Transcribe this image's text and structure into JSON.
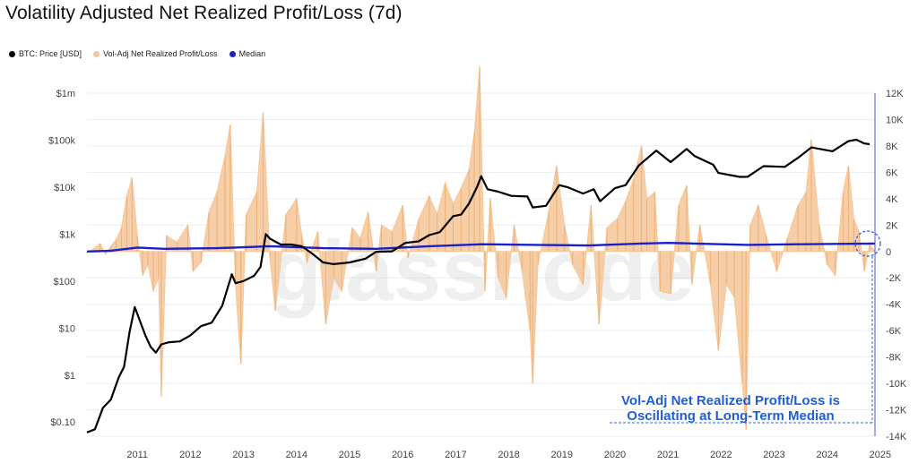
{
  "page": {
    "title": "Volatility Adjusted Net Realized Profit/Loss (7d)",
    "watermark": "glassnode"
  },
  "chart_data": {
    "type": "line",
    "title": "Volatility Adjusted Net Realized Profit/Loss (7d)",
    "legend_placement": "top-left",
    "grid": true,
    "legend": [
      {
        "name": "BTC: Price [USD]",
        "color": "#000000"
      },
      {
        "name": "Vol-Adj Net Realized Profit/Loss",
        "color": "#f5c79a"
      },
      {
        "name": "Median",
        "color": "#1a20c8"
      }
    ],
    "x_ticks": [
      "2011",
      "2012",
      "2013",
      "2014",
      "2015",
      "2016",
      "2017",
      "2018",
      "2019",
      "2020",
      "2021",
      "2022",
      "2023",
      "2024",
      "2025"
    ],
    "xlim": [
      2010.55,
      2025.4
    ],
    "y_left": {
      "scale": "log",
      "ticks": [
        "$0.10",
        "$1",
        "$10",
        "$100",
        "$1k",
        "$10k",
        "$100k",
        "$1m"
      ],
      "tick_values": [
        0.1,
        1,
        10,
        100,
        1000,
        10000,
        100000,
        1000000
      ],
      "range": [
        0.05,
        1000000
      ]
    },
    "y_right": {
      "scale": "linear",
      "ticks": [
        "12K",
        "10K",
        "8K",
        "6K",
        "4K",
        "2K",
        "0",
        "-2K",
        "-4K",
        "-6K",
        "-8K",
        "-10K",
        "-12K",
        "-14K"
      ],
      "tick_values": [
        12000,
        10000,
        8000,
        6000,
        4000,
        2000,
        0,
        -2000,
        -4000,
        -6000,
        -8000,
        -10000,
        -12000,
        -14000
      ],
      "range": [
        -14000,
        12000
      ]
    },
    "series": [
      {
        "name": "BTC: Price [USD]",
        "axis": "left",
        "color": "#000000",
        "points": [
          [
            2010.55,
            0.06
          ],
          [
            2010.7,
            0.07
          ],
          [
            2010.85,
            0.2
          ],
          [
            2011.0,
            0.3
          ],
          [
            2011.15,
            0.9
          ],
          [
            2011.25,
            1.5
          ],
          [
            2011.35,
            8
          ],
          [
            2011.45,
            28
          ],
          [
            2011.55,
            14
          ],
          [
            2011.65,
            7
          ],
          [
            2011.75,
            4
          ],
          [
            2011.85,
            3
          ],
          [
            2011.95,
            4.5
          ],
          [
            2012.1,
            5
          ],
          [
            2012.3,
            5.2
          ],
          [
            2012.5,
            7
          ],
          [
            2012.7,
            11
          ],
          [
            2012.9,
            13
          ],
          [
            2013.1,
            30
          ],
          [
            2013.28,
            140
          ],
          [
            2013.35,
            90
          ],
          [
            2013.5,
            100
          ],
          [
            2013.7,
            130
          ],
          [
            2013.82,
            200
          ],
          [
            2013.92,
            1000
          ],
          [
            2014.0,
            800
          ],
          [
            2014.2,
            600
          ],
          [
            2014.4,
            600
          ],
          [
            2014.6,
            550
          ],
          [
            2014.8,
            380
          ],
          [
            2015.0,
            250
          ],
          [
            2015.2,
            230
          ],
          [
            2015.5,
            250
          ],
          [
            2015.8,
            300
          ],
          [
            2016.0,
            420
          ],
          [
            2016.3,
            430
          ],
          [
            2016.55,
            650
          ],
          [
            2016.8,
            700
          ],
          [
            2017.0,
            950
          ],
          [
            2017.2,
            1100
          ],
          [
            2017.45,
            2400
          ],
          [
            2017.6,
            2600
          ],
          [
            2017.75,
            4500
          ],
          [
            2017.9,
            10000
          ],
          [
            2017.98,
            17000
          ],
          [
            2018.1,
            9000
          ],
          [
            2018.3,
            8000
          ],
          [
            2018.55,
            6500
          ],
          [
            2018.85,
            6300
          ],
          [
            2018.95,
            3700
          ],
          [
            2019.2,
            4000
          ],
          [
            2019.45,
            11000
          ],
          [
            2019.6,
            10000
          ],
          [
            2019.9,
            7300
          ],
          [
            2020.1,
            9000
          ],
          [
            2020.22,
            5000
          ],
          [
            2020.5,
            9500
          ],
          [
            2020.7,
            11000
          ],
          [
            2020.95,
            29000
          ],
          [
            2021.28,
            60000
          ],
          [
            2021.55,
            34000
          ],
          [
            2021.85,
            65000
          ],
          [
            2022.0,
            46000
          ],
          [
            2022.35,
            30000
          ],
          [
            2022.45,
            20000
          ],
          [
            2022.85,
            16500
          ],
          [
            2023.0,
            16600
          ],
          [
            2023.3,
            28000
          ],
          [
            2023.7,
            27000
          ],
          [
            2023.95,
            42000
          ],
          [
            2024.2,
            70000
          ],
          [
            2024.6,
            58000
          ],
          [
            2024.9,
            95000
          ],
          [
            2025.05,
            102000
          ],
          [
            2025.2,
            85000
          ],
          [
            2025.3,
            82000
          ]
        ]
      },
      {
        "name": "Vol-Adj Net Realized Profit/Loss",
        "axis": "right",
        "type": "area",
        "color": "#f5c79a",
        "points": [
          [
            2010.6,
            0
          ],
          [
            2010.8,
            600
          ],
          [
            2010.9,
            -200
          ],
          [
            2011.0,
            400
          ],
          [
            2011.1,
            900
          ],
          [
            2011.2,
            1800
          ],
          [
            2011.3,
            4200
          ],
          [
            2011.4,
            5600
          ],
          [
            2011.5,
            1200
          ],
          [
            2011.6,
            -1800
          ],
          [
            2011.7,
            -1000
          ],
          [
            2011.8,
            -3000
          ],
          [
            2011.9,
            -2000
          ],
          [
            2011.95,
            -11000
          ],
          [
            2012.05,
            1200
          ],
          [
            2012.25,
            700
          ],
          [
            2012.45,
            2000
          ],
          [
            2012.55,
            -1500
          ],
          [
            2012.7,
            -800
          ],
          [
            2012.85,
            3000
          ],
          [
            2013.0,
            4500
          ],
          [
            2013.15,
            7200
          ],
          [
            2013.25,
            9600
          ],
          [
            2013.35,
            -2500
          ],
          [
            2013.45,
            -8500
          ],
          [
            2013.55,
            2800
          ],
          [
            2013.75,
            4500
          ],
          [
            2013.87,
            10500
          ],
          [
            2014.0,
            -600
          ],
          [
            2014.1,
            -4500
          ],
          [
            2014.3,
            2800
          ],
          [
            2014.5,
            4000
          ],
          [
            2014.6,
            1200
          ],
          [
            2014.7,
            -800
          ],
          [
            2014.9,
            1500
          ],
          [
            2015.05,
            -5500
          ],
          [
            2015.2,
            -2000
          ],
          [
            2015.35,
            -3000
          ],
          [
            2015.55,
            1800
          ],
          [
            2015.7,
            1000
          ],
          [
            2015.85,
            3000
          ],
          [
            2016.0,
            -1500
          ],
          [
            2016.1,
            2000
          ],
          [
            2016.3,
            1500
          ],
          [
            2016.5,
            3500
          ],
          [
            2016.6,
            -500
          ],
          [
            2016.8,
            2400
          ],
          [
            2017.0,
            4200
          ],
          [
            2017.15,
            2800
          ],
          [
            2017.3,
            5200
          ],
          [
            2017.45,
            3600
          ],
          [
            2017.6,
            4800
          ],
          [
            2017.75,
            6200
          ],
          [
            2017.85,
            9000
          ],
          [
            2017.95,
            14000
          ],
          [
            2018.05,
            -3000
          ],
          [
            2018.15,
            4000
          ],
          [
            2018.3,
            -2000
          ],
          [
            2018.45,
            -3500
          ],
          [
            2018.6,
            2000
          ],
          [
            2018.75,
            -1500
          ],
          [
            2018.9,
            -6000
          ],
          [
            2018.95,
            -10000
          ],
          [
            2019.05,
            -1000
          ],
          [
            2019.25,
            3000
          ],
          [
            2019.4,
            6500
          ],
          [
            2019.55,
            2000
          ],
          [
            2019.7,
            -1000
          ],
          [
            2019.9,
            -2500
          ],
          [
            2020.05,
            3500
          ],
          [
            2020.2,
            -5500
          ],
          [
            2020.35,
            1800
          ],
          [
            2020.55,
            2500
          ],
          [
            2020.7,
            3800
          ],
          [
            2020.85,
            5500
          ],
          [
            2021.0,
            8000
          ],
          [
            2021.1,
            4000
          ],
          [
            2021.25,
            4500
          ],
          [
            2021.35,
            -3000
          ],
          [
            2021.55,
            -3200
          ],
          [
            2021.7,
            3500
          ],
          [
            2021.85,
            5000
          ],
          [
            2021.95,
            -2500
          ],
          [
            2022.1,
            2000
          ],
          [
            2022.3,
            -2500
          ],
          [
            2022.45,
            -7500
          ],
          [
            2022.6,
            -2500
          ],
          [
            2022.75,
            -3500
          ],
          [
            2022.9,
            -10000
          ],
          [
            2022.97,
            -13500
          ],
          [
            2023.05,
            2000
          ],
          [
            2023.2,
            3500
          ],
          [
            2023.35,
            1200
          ],
          [
            2023.55,
            -1500
          ],
          [
            2023.75,
            1000
          ],
          [
            2023.95,
            3500
          ],
          [
            2024.1,
            4500
          ],
          [
            2024.2,
            8500
          ],
          [
            2024.35,
            2000
          ],
          [
            2024.5,
            -1000
          ],
          [
            2024.65,
            -1800
          ],
          [
            2024.8,
            4500
          ],
          [
            2024.9,
            6500
          ],
          [
            2025.0,
            2500
          ],
          [
            2025.1,
            1500
          ],
          [
            2025.2,
            -1500
          ],
          [
            2025.3,
            500
          ],
          [
            2025.4,
            0
          ]
        ]
      },
      {
        "name": "Median",
        "axis": "right",
        "color": "#1a20c8",
        "points": [
          [
            2010.55,
            0
          ],
          [
            2011.0,
            50
          ],
          [
            2011.5,
            300
          ],
          [
            2012.0,
            200
          ],
          [
            2013.0,
            250
          ],
          [
            2014.0,
            400
          ],
          [
            2015.0,
            250
          ],
          [
            2016.0,
            200
          ],
          [
            2017.0,
            400
          ],
          [
            2018.0,
            550
          ],
          [
            2019.0,
            500
          ],
          [
            2020.0,
            450
          ],
          [
            2021.0,
            600
          ],
          [
            2021.5,
            650
          ],
          [
            2022.0,
            600
          ],
          [
            2023.0,
            500
          ],
          [
            2024.0,
            550
          ],
          [
            2025.4,
            600
          ]
        ]
      }
    ],
    "annotations": [
      {
        "text": "Vol-Adj Net Realized Profit/Loss is",
        "color": "#1f5fd6"
      },
      {
        "text": "Oscillating at Long-Term Median",
        "color": "#1f5fd6"
      }
    ]
  }
}
